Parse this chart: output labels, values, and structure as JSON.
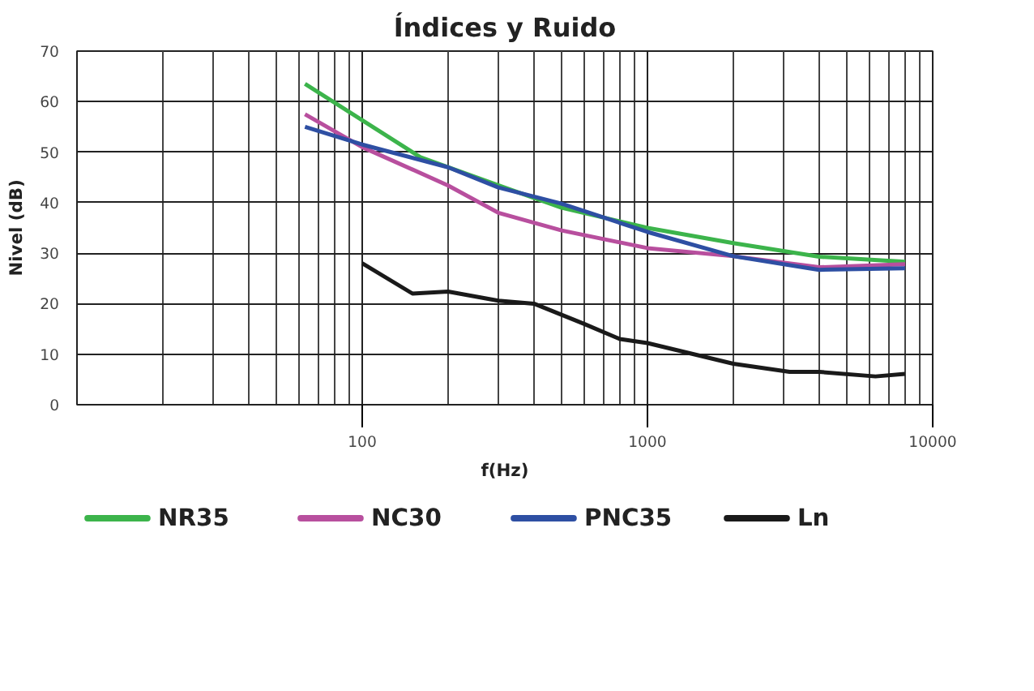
{
  "chart_data": {
    "type": "line",
    "title": "Índices y Ruido",
    "xlabel": "f(Hz)",
    "ylabel": "Nivel (dB)",
    "log": "x",
    "xlim": [
      10,
      10000
    ],
    "xticks": [
      100,
      1000,
      10000
    ],
    "ylim": [
      0,
      70
    ],
    "yticks": [
      0,
      10,
      20,
      30,
      40,
      50,
      60,
      70
    ],
    "grid": true,
    "legend": "bottom",
    "marker": "none",
    "line_style": "solid",
    "series": [
      {
        "name": "NR35",
        "color": "#3cb44b",
        "x": [
          63,
          160,
          315,
          500,
          1000,
          2000,
          4000,
          8000
        ],
        "values": [
          63.5,
          49,
          43,
          39,
          35,
          32,
          29.3,
          28.3
        ]
      },
      {
        "name": "NC30",
        "color": "#b84f9e",
        "x": [
          63,
          100,
          200,
          300,
          500,
          1000,
          2000,
          4000,
          8000
        ],
        "values": [
          57.5,
          51,
          43.4,
          38,
          34.5,
          31,
          29.4,
          27.2,
          27.8
        ]
      },
      {
        "name": "PNC35",
        "color": "#2e4fa3",
        "x": [
          63,
          100,
          200,
          300,
          500,
          1000,
          2000,
          4000,
          8000
        ],
        "values": [
          55,
          51.5,
          47,
          43,
          39.8,
          34.2,
          29.4,
          26.7,
          27
        ]
      },
      {
        "name": "Ln",
        "color": "#1a1a1a",
        "x": [
          100,
          150,
          200,
          300,
          400,
          600,
          800,
          1000,
          2000,
          3150,
          4000,
          6300,
          8000
        ],
        "values": [
          28,
          22,
          22.4,
          20.6,
          20,
          16,
          13,
          12.2,
          8.1,
          6.5,
          6.5,
          5.6,
          6.1
        ]
      }
    ]
  }
}
